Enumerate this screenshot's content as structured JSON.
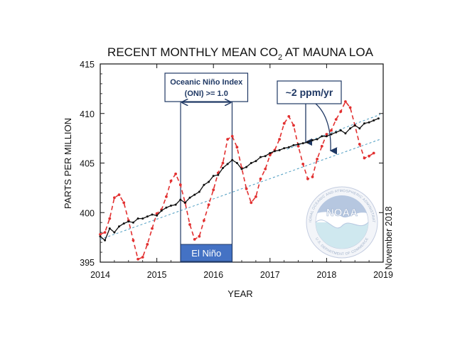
{
  "chart_data": {
    "type": "line",
    "title_prefix": "RECENT MONTHLY MEAN CO",
    "title_sub": "2",
    "title_suffix": " AT MAUNA LOA",
    "xlabel": "YEAR",
    "ylabel": "PARTS PER MILLION",
    "xlim": [
      2014.0,
      2019.0
    ],
    "ylim": [
      395,
      415
    ],
    "x_ticks": [
      2014,
      2015,
      2016,
      2017,
      2018,
      2019
    ],
    "y_ticks": [
      395,
      400,
      405,
      410,
      415
    ],
    "series": [
      {
        "role": "monthly_mean",
        "color": "#e23030",
        "style": "dashed",
        "x": [
          2014.0,
          2014.083,
          2014.167,
          2014.25,
          2014.333,
          2014.417,
          2014.5,
          2014.583,
          2014.667,
          2014.75,
          2014.833,
          2014.917,
          2015.0,
          2015.083,
          2015.167,
          2015.25,
          2015.333,
          2015.417,
          2015.5,
          2015.583,
          2015.667,
          2015.75,
          2015.833,
          2015.917,
          2016.0,
          2016.083,
          2016.167,
          2016.25,
          2016.333,
          2016.417,
          2016.5,
          2016.583,
          2016.667,
          2016.75,
          2016.833,
          2016.917,
          2017.0,
          2017.083,
          2017.167,
          2017.25,
          2017.333,
          2017.417,
          2017.5,
          2017.583,
          2017.667,
          2017.75,
          2017.833,
          2017.917,
          2018.0,
          2018.083,
          2018.167,
          2018.25,
          2018.333,
          2018.417,
          2018.5,
          2018.583,
          2018.667,
          2018.75,
          2018.833
        ],
        "values": [
          397.8,
          398.0,
          399.4,
          401.5,
          401.8,
          401.0,
          399.2,
          397.2,
          395.3,
          395.5,
          396.8,
          398.4,
          399.9,
          400.3,
          401.6,
          403.2,
          403.9,
          402.8,
          401.0,
          398.8,
          397.3,
          397.6,
          399.2,
          400.8,
          402.3,
          404.0,
          405.0,
          407.4,
          407.7,
          406.6,
          404.5,
          402.4,
          401.0,
          401.6,
          403.4,
          404.4,
          405.8,
          406.3,
          407.4,
          409.0,
          409.7,
          408.8,
          406.7,
          404.9,
          403.4,
          403.6,
          405.4,
          406.7,
          407.9,
          408.3,
          409.4,
          410.2,
          411.2,
          410.6,
          408.8,
          406.9,
          405.5,
          405.7,
          406.0
        ]
      },
      {
        "role": "deseasonalized_trend",
        "color": "#111111",
        "style": "solid",
        "x": [
          2014.0,
          2014.083,
          2014.167,
          2014.25,
          2014.333,
          2014.417,
          2014.5,
          2014.583,
          2014.667,
          2014.75,
          2014.833,
          2014.917,
          2015.0,
          2015.083,
          2015.167,
          2015.25,
          2015.333,
          2015.417,
          2015.5,
          2015.583,
          2015.667,
          2015.75,
          2015.833,
          2015.917,
          2016.0,
          2016.083,
          2016.167,
          2016.25,
          2016.333,
          2016.417,
          2016.5,
          2016.583,
          2016.667,
          2016.75,
          2016.833,
          2016.917,
          2017.0,
          2017.083,
          2017.167,
          2017.25,
          2017.333,
          2017.417,
          2017.5,
          2017.583,
          2017.667,
          2017.75,
          2017.833,
          2017.917,
          2018.0,
          2018.083,
          2018.167,
          2018.25,
          2018.333,
          2018.417,
          2018.5,
          2018.583,
          2018.667,
          2018.75,
          2018.833,
          2018.917
        ],
        "values": [
          397.6,
          397.2,
          398.4,
          398.0,
          398.6,
          398.9,
          399.1,
          399.0,
          399.4,
          399.4,
          399.6,
          399.8,
          399.7,
          400.2,
          400.5,
          400.7,
          400.8,
          401.3,
          401.0,
          401.5,
          401.8,
          402.1,
          402.8,
          403.1,
          403.7,
          403.8,
          404.5,
          404.9,
          405.3,
          405.0,
          404.4,
          404.6,
          405.0,
          405.2,
          405.6,
          405.7,
          406.0,
          406.2,
          406.3,
          406.5,
          406.6,
          406.8,
          406.9,
          407.0,
          407.1,
          407.3,
          407.4,
          407.7,
          407.7,
          407.9,
          408.1,
          408.3,
          408.0,
          408.5,
          408.8,
          408.5,
          409.0,
          409.1,
          409.3,
          409.5
        ]
      },
      {
        "role": "trend_fit",
        "color": "#4a9bc0",
        "style": "dotted",
        "x": [
          2014.0,
          2018.95
        ],
        "values": [
          397.3,
          407.4
        ]
      },
      {
        "role": "trend_fit_upper",
        "color": "#4a9bc0",
        "style": "dotted",
        "x": [
          2017.3,
          2018.95
        ],
        "values": [
          406.4,
          409.9
        ]
      }
    ],
    "annotations": {
      "oni_box_line1": "Oceanic Niño Index",
      "oni_box_line2": "(ONI) >= 1.0",
      "oni_range": [
        2015.42,
        2016.33
      ],
      "el_nino_label": "El Niño",
      "rate_label": "~2 ppm/yr",
      "date_stamp": "November 2018"
    },
    "logo": {
      "name": "NOAA",
      "ring_text_top": "NATIONAL OCEANIC AND ATMOSPHERIC ADMINISTRATION",
      "ring_text_bottom": "U.S. DEPARTMENT OF COMMERCE"
    }
  }
}
